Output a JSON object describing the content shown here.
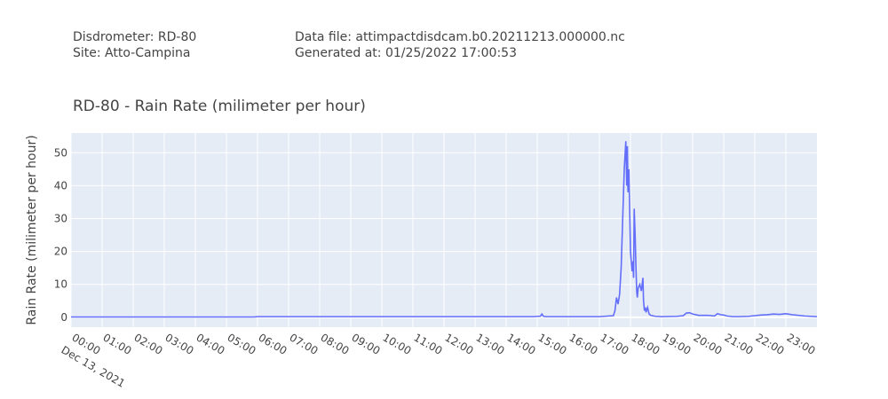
{
  "header": {
    "disdrometer": "Disdrometer: RD-80",
    "site": "Site: Atto-Campina",
    "data_file": "Data file: attimpactdisdcam.b0.20211213.000000.nc",
    "generated": "Generated at: 01/25/2022 17:00:53"
  },
  "chart_data": {
    "type": "line",
    "title": "RD-80 - Rain Rate (milimeter per hour)",
    "xlabel": "",
    "ylabel": "Rain Rate (milimeter per hour)",
    "x_unit": "hours since 00:00 Dec 13, 2021",
    "xlim": [
      0,
      24
    ],
    "ylim": [
      -3,
      56
    ],
    "x_ticks": [
      0,
      1,
      2,
      3,
      4,
      5,
      6,
      7,
      8,
      9,
      10,
      11,
      12,
      13,
      14,
      15,
      16,
      17,
      18,
      19,
      20,
      21,
      22,
      23
    ],
    "x_tick_labels": [
      "00:00",
      "01:00",
      "02:00",
      "03:00",
      "04:00",
      "05:00",
      "06:00",
      "07:00",
      "08:00",
      "09:00",
      "10:00",
      "11:00",
      "12:00",
      "13:00",
      "14:00",
      "15:00",
      "16:00",
      "17:00",
      "18:00",
      "19:00",
      "20:00",
      "21:00",
      "22:00",
      "23:00"
    ],
    "x_date_label": "Dec 13, 2021",
    "y_ticks": [
      0,
      10,
      20,
      30,
      40,
      50
    ],
    "y_tick_labels": [
      "0",
      "10",
      "20",
      "30",
      "40",
      "50"
    ],
    "grid": true,
    "line_color": "#636efa",
    "plot_bg": "#e5ecf6",
    "grid_color": "#ffffff",
    "series": [
      {
        "x": [
          0,
          5.9,
          6.0,
          14.9,
          15.0,
          15.1,
          15.15,
          15.2,
          15.3,
          17.0,
          17.45,
          17.5,
          17.55,
          17.6,
          17.65,
          17.7,
          17.75,
          17.8,
          17.85,
          17.88,
          17.9,
          17.92,
          17.95,
          17.98,
          18.0,
          18.05,
          18.08,
          18.1,
          18.12,
          18.15,
          18.18,
          18.2,
          18.22,
          18.25,
          18.3,
          18.35,
          18.4,
          18.42,
          18.45,
          18.48,
          18.5,
          18.55,
          18.6,
          18.65,
          18.7,
          18.8,
          19.0,
          19.5,
          19.7,
          19.8,
          19.9,
          20.0,
          20.2,
          20.5,
          20.7,
          20.8,
          20.9,
          21.0,
          21.1,
          21.3,
          21.5,
          21.8,
          22.0,
          22.2,
          22.4,
          22.6,
          22.8,
          23.0,
          23.2,
          23.4,
          23.6,
          23.8,
          24.0
        ],
        "y": [
          0.1,
          0.1,
          0.2,
          0.2,
          0.3,
          0.3,
          1.0,
          0.3,
          0.2,
          0.2,
          0.5,
          2.0,
          6.0,
          4.0,
          7.0,
          15.0,
          30.0,
          45.0,
          53.5,
          40.0,
          52.0,
          38.0,
          45.0,
          30.0,
          20.0,
          14.0,
          17.0,
          12.0,
          33.0,
          25.0,
          14.0,
          8.0,
          6.0,
          9.0,
          10.0,
          8.0,
          12.0,
          5.0,
          2.0,
          3.0,
          1.5,
          3.0,
          1.0,
          0.6,
          0.5,
          0.3,
          0.2,
          0.3,
          0.5,
          1.3,
          1.4,
          1.0,
          0.6,
          0.6,
          0.4,
          1.1,
          0.8,
          0.7,
          0.4,
          0.2,
          0.2,
          0.3,
          0.5,
          0.7,
          0.8,
          1.0,
          0.9,
          1.1,
          0.8,
          0.6,
          0.4,
          0.3,
          0.2
        ]
      }
    ]
  }
}
